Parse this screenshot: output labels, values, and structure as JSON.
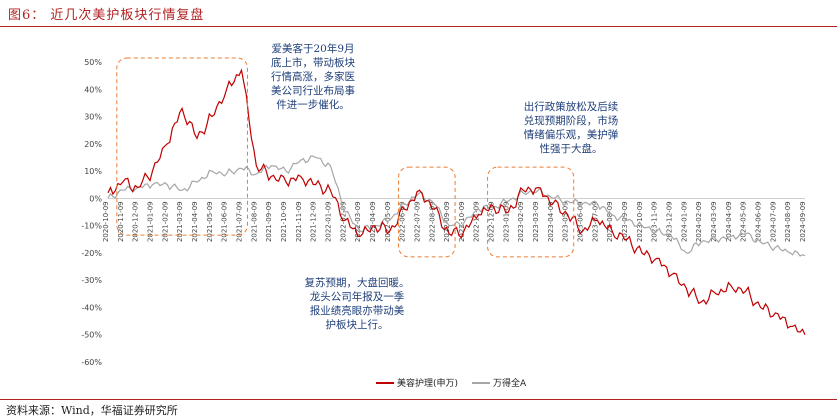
{
  "figure": {
    "title": "图6：  近几次美护板块行情复盘",
    "source": "资料来源：Wind，华福证券研究所"
  },
  "colors": {
    "beauty": "#c00000",
    "wind": "#a6a6a6",
    "highlight": "#ed7d31",
    "annotation": "#1f3f7a"
  },
  "annotations": [
    {
      "id": "a1",
      "lines": [
        "爱美客于20年9月",
        "底上市，带动板块",
        "行情高涨，多家医",
        "美公司行业布局事",
        "件进一步催化。"
      ]
    },
    {
      "id": "a2",
      "lines": [
        "出行政策放松及后续",
        "兑现预期阶段，市场",
        "情绪偏乐观，美护弹",
        "性强于大盘。"
      ]
    },
    {
      "id": "a3",
      "lines": [
        "复苏预期，大盘回暖。",
        "龙头公司年报及一季",
        "报业绩亮眼亦带动美",
        "护板块上行。"
      ]
    }
  ],
  "chart_data": {
    "type": "line",
    "title": "",
    "xlabel": "",
    "ylabel": "",
    "ylim": [
      -60,
      50
    ],
    "yticks": [
      "-60%",
      "-50%",
      "-40%",
      "-30%",
      "-20%",
      "-10%",
      "0%",
      "10%",
      "20%",
      "30%",
      "40%",
      "50%"
    ],
    "x": [
      "2020-10-09",
      "2020-11-09",
      "2020-12-09",
      "2021-01-09",
      "2021-02-09",
      "2021-03-09",
      "2021-04-09",
      "2021-05-09",
      "2021-06-09",
      "2021-07-09",
      "2021-08-09",
      "2021-09-09",
      "2021-10-09",
      "2021-11-09",
      "2021-12-09",
      "2022-01-09",
      "2022-02-09",
      "2022-03-09",
      "2022-04-09",
      "2022-05-09",
      "2022-06-09",
      "2022-07-09",
      "2022-08-09",
      "2022-09-09",
      "2022-10-09",
      "2022-11-09",
      "2022-12-09",
      "2023-01-09",
      "2023-02-09",
      "2023-03-09",
      "2023-04-09",
      "2023-05-09",
      "2023-06-09",
      "2023-07-09",
      "2023-08-09",
      "2023-09-09",
      "2023-10-09",
      "2023-11-09",
      "2023-12-09",
      "2024-01-09",
      "2024-02-09",
      "2024-03-09",
      "2024-04-09",
      "2024-05-09",
      "2024-06-09",
      "2024-07-09",
      "2024-08-09",
      "2024-09-09"
    ],
    "series": [
      {
        "name": "美容护理(申万)",
        "color": "#c00000",
        "values": [
          2,
          6,
          4,
          10,
          20,
          33,
          22,
          30,
          40,
          47,
          12,
          8,
          6,
          8,
          5,
          3,
          -8,
          -14,
          -10,
          -12,
          -4,
          3,
          -4,
          -13,
          -12,
          -6,
          -3,
          -5,
          3,
          4,
          -2,
          -6,
          -12,
          -8,
          -12,
          -15,
          -20,
          -22,
          -28,
          -33,
          -38,
          -35,
          -32,
          -34,
          -40,
          -42,
          -47,
          -50
        ]
      },
      {
        "name": "万得全A",
        "color": "#a6a6a6",
        "values": [
          0,
          3,
          4,
          5,
          5,
          3,
          6,
          10,
          9,
          11,
          9,
          12,
          10,
          14,
          15,
          12,
          -5,
          -12,
          -10,
          -8,
          -2,
          2,
          -2,
          -10,
          -9,
          -4,
          -3,
          -1,
          2,
          3,
          0,
          -1,
          -2,
          -2,
          -6,
          -8,
          -10,
          -12,
          -14,
          -20,
          -16,
          -15,
          -14,
          -13,
          -16,
          -18,
          -20,
          -21
        ]
      }
    ],
    "highlight_boxes": [
      {
        "x": [
          "2020-11-09",
          "2021-07-09"
        ],
        "y": [
          -12,
          50
        ]
      },
      {
        "x": [
          "2022-06-09",
          "2022-09-09"
        ],
        "y": [
          -20,
          10
        ]
      },
      {
        "x": [
          "2022-12-09",
          "2023-05-09"
        ],
        "y": [
          -20,
          10
        ]
      }
    ]
  }
}
